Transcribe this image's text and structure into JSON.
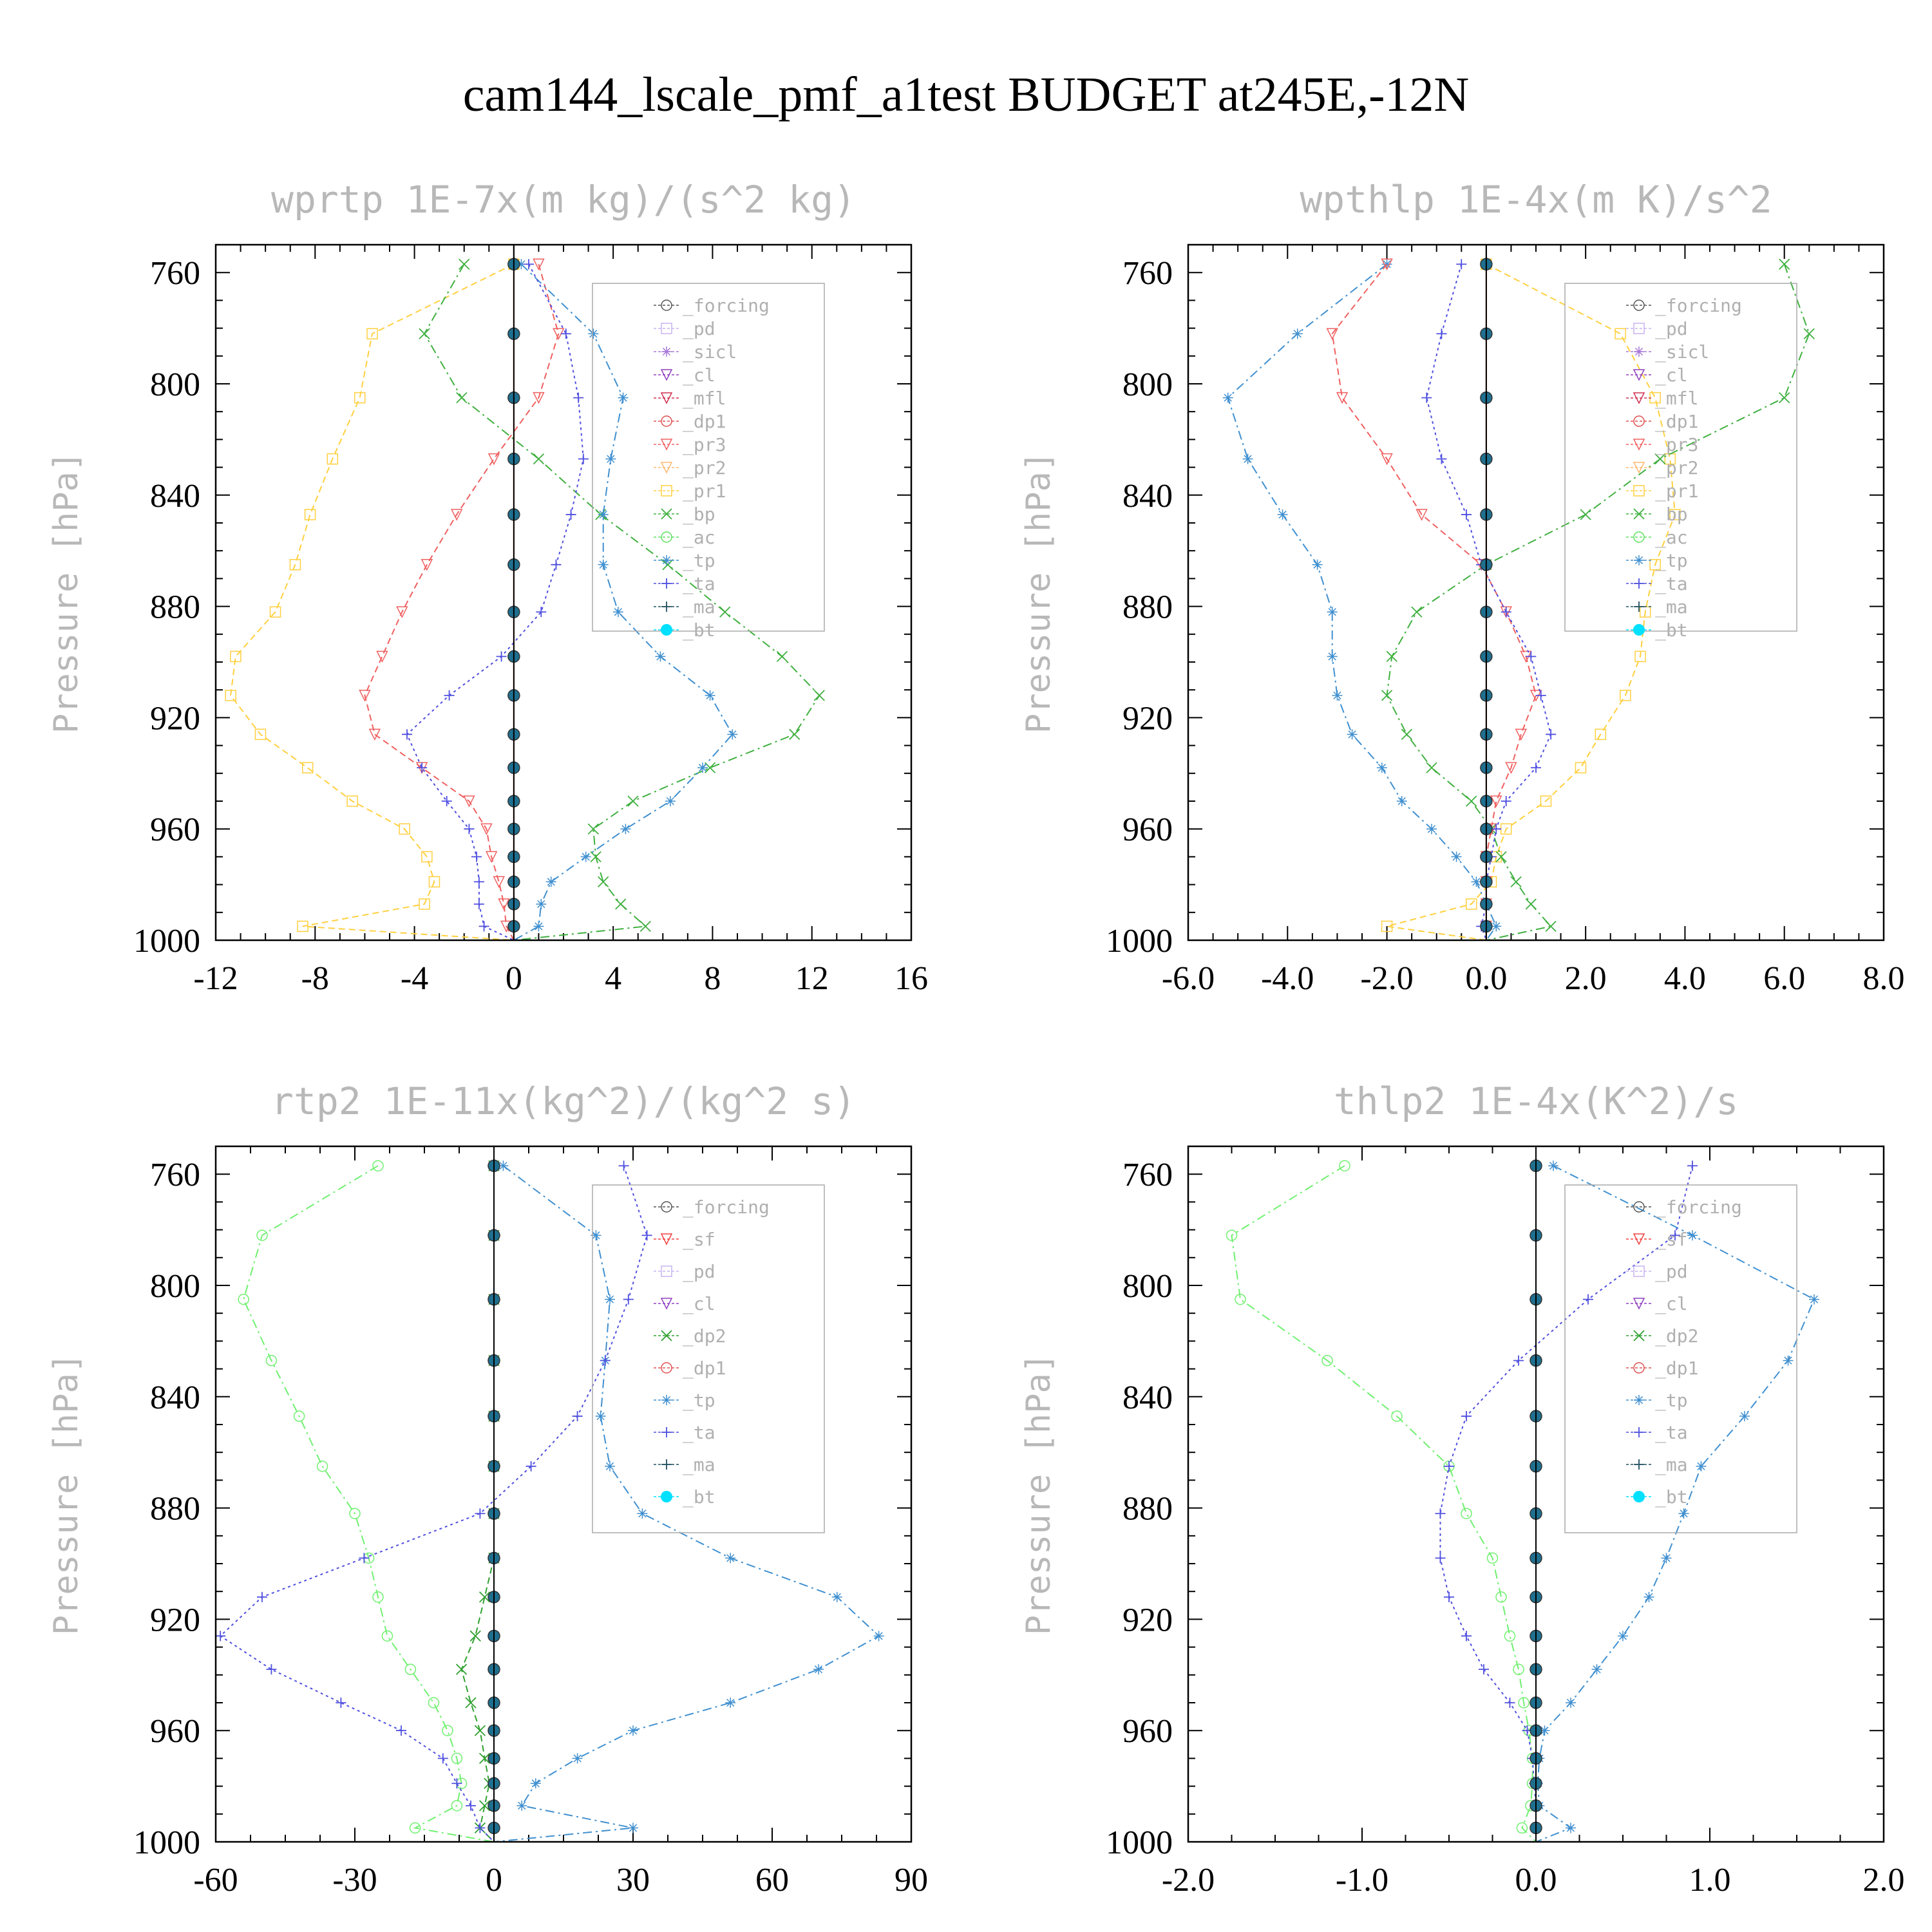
{
  "title": "cam144_lscale_pmf_a1test  BUDGET at245E,-12N",
  "y_axis": {
    "label": "Pressure [hPa]",
    "range": [
      1000,
      750
    ],
    "ticks": [
      760,
      800,
      840,
      880,
      920,
      960,
      1000
    ]
  },
  "levels": [
    757,
    782,
    805,
    827,
    847,
    865,
    882,
    898,
    912,
    926,
    938,
    950,
    960,
    970,
    979,
    987,
    995,
    1000
  ],
  "colors": {
    "forcing": "#555555",
    "pd": "#c8b4f0",
    "sicl": "#a878d8",
    "cl": "#9040c0",
    "mfl": "#d03050",
    "dp1": "#e05050",
    "pr3": "#f06060",
    "pr2": "#ffb870",
    "pr1": "#ffd040",
    "bp": "#40b040",
    "ac": "#60e060",
    "tp": "#4090d0",
    "ta": "#5050e0",
    "ma": "#205060",
    "bt": "#00e0ff",
    "sf": "#f04040",
    "dp2": "#30a030",
    "dp1b": "#70f070"
  },
  "chart_data": [
    {
      "type": "line",
      "title": "wprtp  1E-7x(m kg)/(s^2 kg)",
      "xlim": [
        -12,
        16
      ],
      "xticks": [
        -12,
        -8,
        -4,
        0,
        4,
        8,
        12,
        16
      ],
      "ylabel": "Pressure [hPa]",
      "legend": [
        "_forcing",
        "_pd",
        "_sicl",
        "_cl",
        "_mfl",
        "_dp1",
        "_pr3",
        "_pr2",
        "_pr1",
        "_bp",
        "_ac",
        "_tp",
        "_ta",
        "_ma",
        "_bt"
      ],
      "series": [
        {
          "key": "pr1",
          "marker": "square",
          "dash": "10 6",
          "values": [
            0,
            -5.7,
            -6.2,
            -7.3,
            -8.2,
            -8.8,
            -9.6,
            -11.2,
            -11.4,
            -10.2,
            -8.3,
            -6.5,
            -4.4,
            -3.5,
            -3.2,
            -3.6,
            -8.5,
            0
          ]
        },
        {
          "key": "pr3",
          "marker": "tri-down",
          "dash": "10 6",
          "values": [
            1,
            1.8,
            1,
            -0.8,
            -2.3,
            -3.5,
            -4.5,
            -5.3,
            -6,
            -5.6,
            -3.7,
            -1.8,
            -1.1,
            -0.9,
            -0.6,
            -0.4,
            -0.3,
            0
          ]
        },
        {
          "key": "bp",
          "marker": "x",
          "dash": "14 6 3 6",
          "values": [
            -2,
            -3.6,
            -2.1,
            1,
            3.5,
            6.2,
            8.5,
            10.8,
            12.3,
            11.3,
            7.9,
            4.8,
            3.2,
            3.3,
            3.6,
            4.3,
            5.3,
            0
          ]
        },
        {
          "key": "tp",
          "marker": "asterisk",
          "dash": "14 6 3 6",
          "values": [
            0.3,
            3.2,
            4.4,
            3.9,
            3.6,
            3.6,
            4.2,
            5.9,
            7.9,
            8.8,
            7.6,
            6.3,
            4.5,
            2.9,
            1.5,
            1.1,
            1,
            0
          ]
        },
        {
          "key": "ta",
          "marker": "plus",
          "dash": "4 5",
          "values": [
            0.6,
            2.1,
            2.6,
            2.8,
            2.3,
            1.7,
            1.1,
            -0.5,
            -2.6,
            -4.3,
            -3.7,
            -2.7,
            -1.8,
            -1.5,
            -1.4,
            -1.4,
            -1.2,
            0
          ]
        },
        {
          "key": "forcing",
          "marker": "circle",
          "dash": "",
          "values": [
            0,
            0,
            0,
            0,
            0,
            0,
            0,
            0,
            0,
            0,
            0,
            0,
            0,
            0,
            0,
            0,
            0,
            0
          ]
        }
      ]
    },
    {
      "type": "line",
      "title": "wpthlp  1E-4x(m K)/s^2",
      "xlim": [
        -6,
        8
      ],
      "xticks": [
        "-6.0",
        "-4.0",
        "-2.0",
        "0.0",
        "2.0",
        "4.0",
        "6.0",
        "8.0"
      ],
      "ylabel": "Pressure [hPa]",
      "legend": [
        "_forcing",
        "_pd",
        "_sicl",
        "_cl",
        "_mfl",
        "_dp1",
        "_pr3",
        "_pr2",
        "_pr1",
        "_bp",
        "_ac",
        "_tp",
        "_ta",
        "_ma",
        "_bt"
      ],
      "series": [
        {
          "key": "pr1",
          "marker": "square",
          "dash": "10 6",
          "values": [
            0,
            2.7,
            3.4,
            3.7,
            3.8,
            3.4,
            3.2,
            3.1,
            2.8,
            2.3,
            1.9,
            1.2,
            0.4,
            0.2,
            0.1,
            -0.3,
            -2,
            0
          ]
        },
        {
          "key": "bp",
          "marker": "x",
          "dash": "14 6 3 6",
          "values": [
            6,
            6.5,
            6,
            3.5,
            2,
            0,
            -1.4,
            -1.9,
            -2,
            -1.6,
            -1.1,
            -0.3,
            0.1,
            0.3,
            0.6,
            0.9,
            1.3,
            0
          ]
        },
        {
          "key": "tp",
          "marker": "asterisk",
          "dash": "14 6 3 6",
          "values": [
            -2,
            -3.8,
            -5.2,
            -4.8,
            -4.1,
            -3.4,
            -3.1,
            -3.1,
            -3.0,
            -2.7,
            -2.1,
            -1.7,
            -1.1,
            -0.6,
            -0.2,
            0,
            0.2,
            0
          ]
        },
        {
          "key": "pr3",
          "marker": "tri-down",
          "dash": "10 6",
          "values": [
            -2,
            -3.1,
            -2.9,
            -2,
            -1.3,
            -0.1,
            0.4,
            0.8,
            1,
            0.7,
            0.5,
            0.2,
            0.1,
            0,
            0,
            0,
            0,
            0
          ]
        },
        {
          "key": "ta",
          "marker": "plus",
          "dash": "4 5",
          "values": [
            -0.5,
            -0.9,
            -1.2,
            -0.9,
            -0.4,
            -0.1,
            0.4,
            0.9,
            1.1,
            1.3,
            1,
            0.4,
            0.2,
            0.1,
            0,
            0,
            -0.1,
            0
          ]
        },
        {
          "key": "forcing",
          "marker": "circle",
          "dash": "",
          "values": [
            0,
            0,
            0,
            0,
            0,
            0,
            0,
            0,
            0,
            0,
            0,
            0,
            0,
            0,
            0,
            0,
            0,
            0
          ]
        }
      ]
    },
    {
      "type": "line",
      "title": "rtp2  1E-11x(kg^2)/(kg^2 s)",
      "xlim": [
        -60,
        90
      ],
      "xticks": [
        -60,
        -30,
        0,
        30,
        60,
        90
      ],
      "ylabel": "Pressure [hPa]",
      "legend": [
        "_forcing",
        "_sf",
        "_pd",
        "_cl",
        "_dp2",
        "_dp1",
        "_tp",
        "_ta",
        "_ma",
        "_bt"
      ],
      "series": [
        {
          "key": "dp1b",
          "marker": "circle-open",
          "dash": "14 6 3 6",
          "values": [
            -25,
            -50,
            -54,
            -48,
            -42,
            -37,
            -30,
            -27,
            -25,
            -23,
            -18,
            -13,
            -10,
            -8,
            -7,
            -8,
            -17,
            0
          ]
        },
        {
          "key": "dp2",
          "marker": "x",
          "dash": "10 6",
          "values": [
            0,
            0,
            0,
            0,
            0,
            0,
            0,
            0,
            -2,
            -4,
            -7,
            -5,
            -3,
            -2,
            -1,
            -2,
            -3,
            0
          ]
        },
        {
          "key": "tp",
          "marker": "asterisk",
          "dash": "14 6 3 6",
          "values": [
            2,
            22,
            25,
            24,
            23,
            25,
            32,
            51,
            74,
            83,
            70,
            51,
            30,
            18,
            9,
            6,
            30,
            0
          ]
        },
        {
          "key": "ta",
          "marker": "plus",
          "dash": "4 5",
          "values": [
            28,
            33,
            29,
            24,
            18,
            8,
            -3,
            -28,
            -50,
            -59,
            -48,
            -33,
            -20,
            -11,
            -8,
            -5,
            -3,
            0
          ]
        },
        {
          "key": "forcing",
          "marker": "circle",
          "dash": "",
          "values": [
            0,
            0,
            0,
            0,
            0,
            0,
            0,
            0,
            0,
            0,
            0,
            0,
            0,
            0,
            0,
            0,
            0,
            0
          ]
        }
      ]
    },
    {
      "type": "line",
      "title": "thlp2  1E-4x(K^2)/s",
      "xlim": [
        -2,
        2
      ],
      "xticks": [
        "-2.0",
        "-1.0",
        "0.0",
        "1.0",
        "2.0"
      ],
      "ylabel": "Pressure [hPa]",
      "legend": [
        "_forcing",
        "_sf",
        "_pd",
        "_cl",
        "_dp2",
        "_dp1",
        "_tp",
        "_ta",
        "_ma",
        "_bt"
      ],
      "series": [
        {
          "key": "dp1b",
          "marker": "circle-open",
          "dash": "14 6 3 6",
          "values": [
            -1.1,
            -1.75,
            -1.7,
            -1.2,
            -0.8,
            -0.5,
            -0.4,
            -0.25,
            -0.2,
            -0.15,
            -0.1,
            -0.07,
            -0.04,
            -0.02,
            -0.02,
            -0.03,
            -0.08,
            0
          ]
        },
        {
          "key": "tp",
          "marker": "asterisk",
          "dash": "14 6 3 6",
          "values": [
            0.1,
            0.9,
            1.6,
            1.45,
            1.2,
            0.95,
            0.85,
            0.75,
            0.65,
            0.5,
            0.35,
            0.2,
            0.05,
            0.02,
            0.01,
            0.02,
            0.2,
            0
          ]
        },
        {
          "key": "ta",
          "marker": "plus",
          "dash": "4 5",
          "values": [
            0.9,
            0.8,
            0.3,
            -0.1,
            -0.4,
            -0.5,
            -0.55,
            -0.55,
            -0.5,
            -0.4,
            -0.3,
            -0.15,
            -0.05,
            -0.02,
            -0.01,
            0,
            0,
            0
          ]
        },
        {
          "key": "forcing",
          "marker": "circle",
          "dash": "",
          "values": [
            0,
            0,
            0,
            0,
            0,
            0,
            0,
            0,
            0,
            0,
            0,
            0,
            0,
            0,
            0,
            0,
            0,
            0
          ]
        }
      ]
    }
  ]
}
